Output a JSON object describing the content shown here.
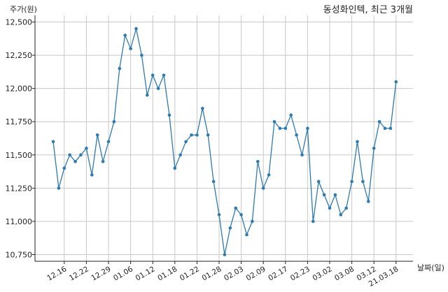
{
  "chart_data": {
    "type": "line",
    "title": "동성화인텍, 최근 3개월",
    "ylabel": "주가(원)",
    "xlabel": "날짜(일)",
    "ylim": [
      10700,
      12550
    ],
    "yticks": [
      {
        "value": 10750,
        "label": "10,750"
      },
      {
        "value": 11000,
        "label": "11,000"
      },
      {
        "value": 11250,
        "label": "11,250"
      },
      {
        "value": 11500,
        "label": "11,500"
      },
      {
        "value": 11750,
        "label": "11,750"
      },
      {
        "value": 12000,
        "label": "12,000"
      },
      {
        "value": 12250,
        "label": "12,250"
      },
      {
        "value": 12500,
        "label": "12,500"
      }
    ],
    "xticks": [
      {
        "index": 2,
        "label": "12.16"
      },
      {
        "index": 6,
        "label": "12.22"
      },
      {
        "index": 10,
        "label": "12.29"
      },
      {
        "index": 14,
        "label": "01.06"
      },
      {
        "index": 18,
        "label": "01.12"
      },
      {
        "index": 22,
        "label": "01.18"
      },
      {
        "index": 26,
        "label": "01.22"
      },
      {
        "index": 30,
        "label": "01.28"
      },
      {
        "index": 34,
        "label": "02.03"
      },
      {
        "index": 38,
        "label": "02.09"
      },
      {
        "index": 42,
        "label": "02.17"
      },
      {
        "index": 46,
        "label": "02.23"
      },
      {
        "index": 50,
        "label": "03.02"
      },
      {
        "index": 54,
        "label": "03.08"
      },
      {
        "index": 58,
        "label": "03.12"
      },
      {
        "index": 62,
        "label": "21.03.18"
      }
    ],
    "grid": true,
    "line_color": "#2e7bb0",
    "values": [
      11600,
      11250,
      11400,
      11500,
      11450,
      11500,
      11550,
      11350,
      11650,
      11450,
      11600,
      11750,
      12150,
      12400,
      12300,
      12450,
      12250,
      11950,
      12100,
      12000,
      12100,
      11800,
      11400,
      11500,
      11600,
      11650,
      11650,
      11850,
      11650,
      11300,
      11050,
      10750,
      10950,
      11100,
      11050,
      10900,
      11000,
      11450,
      11250,
      11350,
      11750,
      11700,
      11700,
      11800,
      11650,
      11500,
      11700,
      11000,
      11300,
      11200,
      11100,
      11200,
      11050,
      11100,
      11300,
      11600,
      11300,
      11150,
      11550,
      11750,
      11700,
      11700,
      12050
    ]
  }
}
